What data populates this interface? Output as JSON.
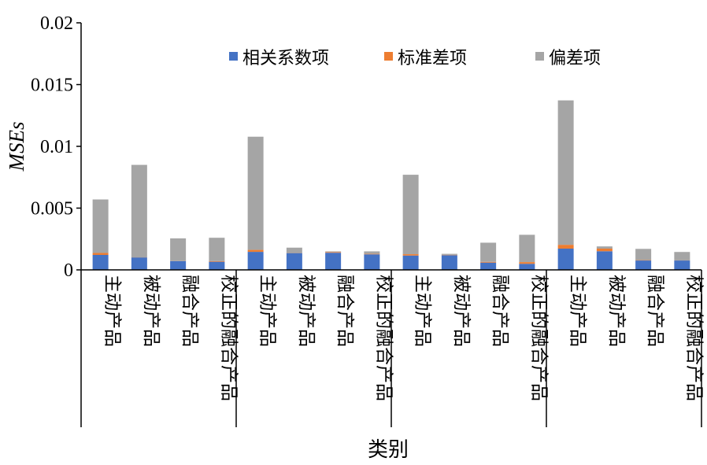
{
  "chart_data": {
    "type": "bar",
    "stacked": true,
    "xlabel": "类别",
    "ylabel": "MSEs",
    "ylim": [
      0,
      0.02
    ],
    "yticks": [
      "0",
      "0.005",
      "0.01",
      "0.015",
      "0.02"
    ],
    "grid": false,
    "legend_position": "top-right",
    "categories": [
      "主动产品",
      "被动产品",
      "融合产品",
      "校正的融合产品",
      "主动产品",
      "被动产品",
      "融合产品",
      "校正的融合产品",
      "主动产品",
      "被动产品",
      "融合产品",
      "校正的融合产品",
      "主动产品",
      "被动产品",
      "融合产品",
      "校正的融合产品"
    ],
    "series": [
      {
        "name": "相关系数项",
        "color": "#4472C4",
        "values": [
          0.00121,
          0.00101,
          0.00071,
          0.00066,
          0.00146,
          0.00136,
          0.00139,
          0.00126,
          0.00116,
          0.00119,
          0.00059,
          0.00049,
          0.00172,
          0.00151,
          0.00076,
          0.00076
        ]
      },
      {
        "name": "标准差项",
        "color": "#ED7D31",
        "values": [
          0.00016,
          1e-05,
          1e-05,
          5e-05,
          0.00016,
          1e-05,
          6e-05,
          4e-05,
          0.00011,
          3e-05,
          6e-05,
          0.00014,
          0.00031,
          0.00021,
          3e-05,
          1e-05
        ]
      },
      {
        "name": "偏差项",
        "color": "#A5A5A5",
        "values": [
          0.00433,
          0.00748,
          0.00183,
          0.00189,
          0.00916,
          0.00043,
          5e-05,
          0.0002,
          0.00643,
          8e-05,
          0.00155,
          0.00221,
          0.01169,
          0.00018,
          0.00091,
          0.00068
        ]
      }
    ]
  }
}
